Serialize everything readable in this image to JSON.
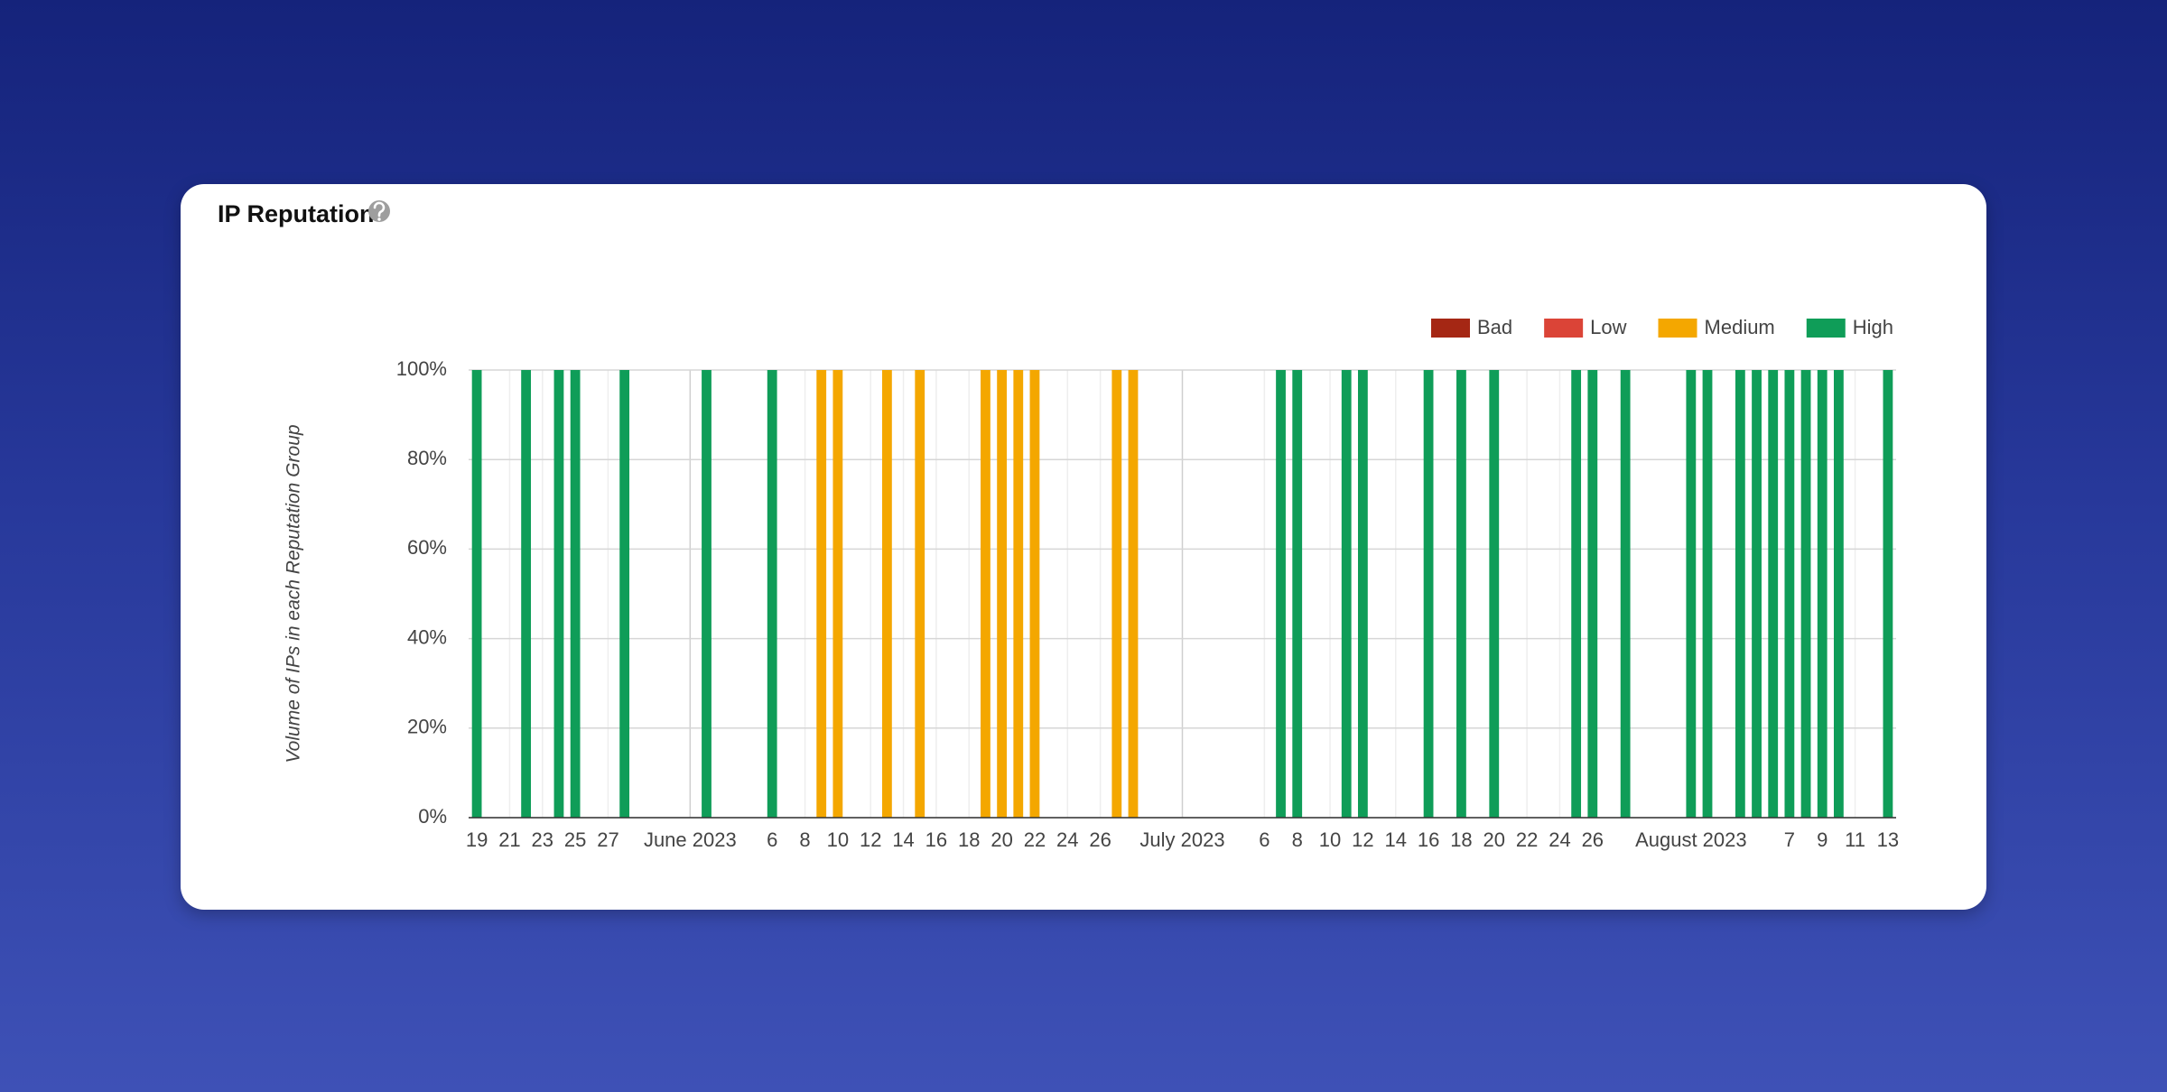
{
  "chart_data": {
    "type": "bar",
    "stacked": true,
    "title": "IP Reputation",
    "y_label": "Volume of IPs in each Reputation Group",
    "categories": [
      "19",
      null,
      "21",
      null,
      "23",
      null,
      "25",
      null,
      "27",
      null,
      null,
      null,
      null,
      "June 2023",
      null,
      null,
      null,
      null,
      "6",
      null,
      "8",
      null,
      "10",
      null,
      "12",
      null,
      "14",
      null,
      "16",
      null,
      "18",
      null,
      "20",
      null,
      "22",
      null,
      "24",
      null,
      "26",
      null,
      null,
      null,
      null,
      "July 2023",
      null,
      null,
      null,
      null,
      "6",
      null,
      "8",
      null,
      "10",
      null,
      "12",
      null,
      "14",
      null,
      "16",
      null,
      "18",
      null,
      "20",
      null,
      "22",
      null,
      "24",
      null,
      "26",
      null,
      null,
      null,
      null,
      null,
      "August 2023",
      null,
      null,
      null,
      null,
      null,
      "7",
      null,
      "9",
      null,
      "11",
      null,
      "13"
    ],
    "series": [
      {
        "name": "Bad",
        "color": "#a52714",
        "values": [
          0,
          0,
          0,
          0,
          0,
          0,
          0,
          0,
          0,
          0,
          0,
          0,
          0,
          0,
          0,
          0,
          0,
          0,
          0,
          0,
          0,
          0,
          0,
          0,
          0,
          0,
          0,
          0,
          0,
          0,
          0,
          0,
          0,
          0,
          0,
          0,
          0,
          0,
          0,
          0,
          0,
          0,
          0,
          0,
          0,
          0,
          0,
          0,
          0,
          0,
          0,
          0,
          0,
          0,
          0,
          0,
          0,
          0,
          0,
          0,
          0,
          0,
          0,
          0,
          0,
          0,
          0,
          0,
          0,
          0,
          0,
          0,
          0,
          0,
          0,
          0,
          0,
          0,
          0,
          0,
          0,
          0,
          0,
          0,
          0,
          0,
          0
        ]
      },
      {
        "name": "Low",
        "color": "#db4437",
        "values": [
          0,
          0,
          0,
          0,
          0,
          0,
          0,
          0,
          0,
          0,
          0,
          0,
          0,
          0,
          0,
          0,
          0,
          0,
          0,
          0,
          0,
          0,
          0,
          0,
          0,
          0,
          0,
          0,
          0,
          0,
          0,
          0,
          0,
          0,
          0,
          0,
          0,
          0,
          0,
          0,
          0,
          0,
          0,
          0,
          0,
          0,
          0,
          0,
          0,
          0,
          0,
          0,
          0,
          0,
          0,
          0,
          0,
          0,
          0,
          0,
          0,
          0,
          0,
          0,
          0,
          0,
          0,
          0,
          0,
          0,
          0,
          0,
          0,
          0,
          0,
          0,
          0,
          0,
          0,
          0,
          0,
          0,
          0,
          0,
          0,
          0,
          0
        ]
      },
      {
        "name": "Medium",
        "color": "#f4a700",
        "values": [
          0,
          0,
          0,
          0,
          0,
          0,
          0,
          0,
          0,
          0,
          0,
          0,
          0,
          0,
          0,
          0,
          0,
          0,
          0,
          0,
          0,
          100,
          100,
          0,
          0,
          100,
          0,
          100,
          0,
          0,
          0,
          100,
          100,
          100,
          100,
          0,
          0,
          0,
          0,
          100,
          100,
          0,
          0,
          0,
          0,
          0,
          0,
          0,
          0,
          0,
          0,
          0,
          0,
          0,
          0,
          0,
          0,
          0,
          0,
          0,
          0,
          0,
          0,
          0,
          0,
          0,
          0,
          0,
          0,
          0,
          0,
          0,
          0,
          0,
          0,
          0,
          0,
          0,
          0,
          0,
          0,
          0,
          0,
          0,
          0,
          0,
          0
        ]
      },
      {
        "name": "High",
        "color": "#0f9d58",
        "values": [
          100,
          0,
          0,
          100,
          0,
          100,
          100,
          0,
          0,
          100,
          0,
          0,
          0,
          0,
          100,
          0,
          0,
          0,
          100,
          0,
          0,
          0,
          0,
          0,
          0,
          0,
          0,
          0,
          0,
          0,
          0,
          0,
          0,
          0,
          0,
          0,
          0,
          0,
          0,
          0,
          0,
          0,
          0,
          0,
          0,
          0,
          0,
          0,
          0,
          100,
          100,
          0,
          0,
          100,
          100,
          0,
          0,
          0,
          100,
          0,
          100,
          0,
          100,
          0,
          0,
          0,
          0,
          100,
          100,
          0,
          100,
          0,
          0,
          0,
          100,
          100,
          0,
          100,
          100,
          100,
          100,
          100,
          100,
          100,
          0,
          0,
          100
        ]
      }
    ],
    "ylim": [
      0,
      100
    ],
    "yticks": [
      {
        "value": 0,
        "label": "0%"
      },
      {
        "value": 20,
        "label": "20%"
      },
      {
        "value": 40,
        "label": "40%"
      },
      {
        "value": 60,
        "label": "60%"
      },
      {
        "value": 80,
        "label": "80%"
      },
      {
        "value": 100,
        "label": "100%"
      }
    ],
    "grid": true,
    "legend": "top-right"
  }
}
